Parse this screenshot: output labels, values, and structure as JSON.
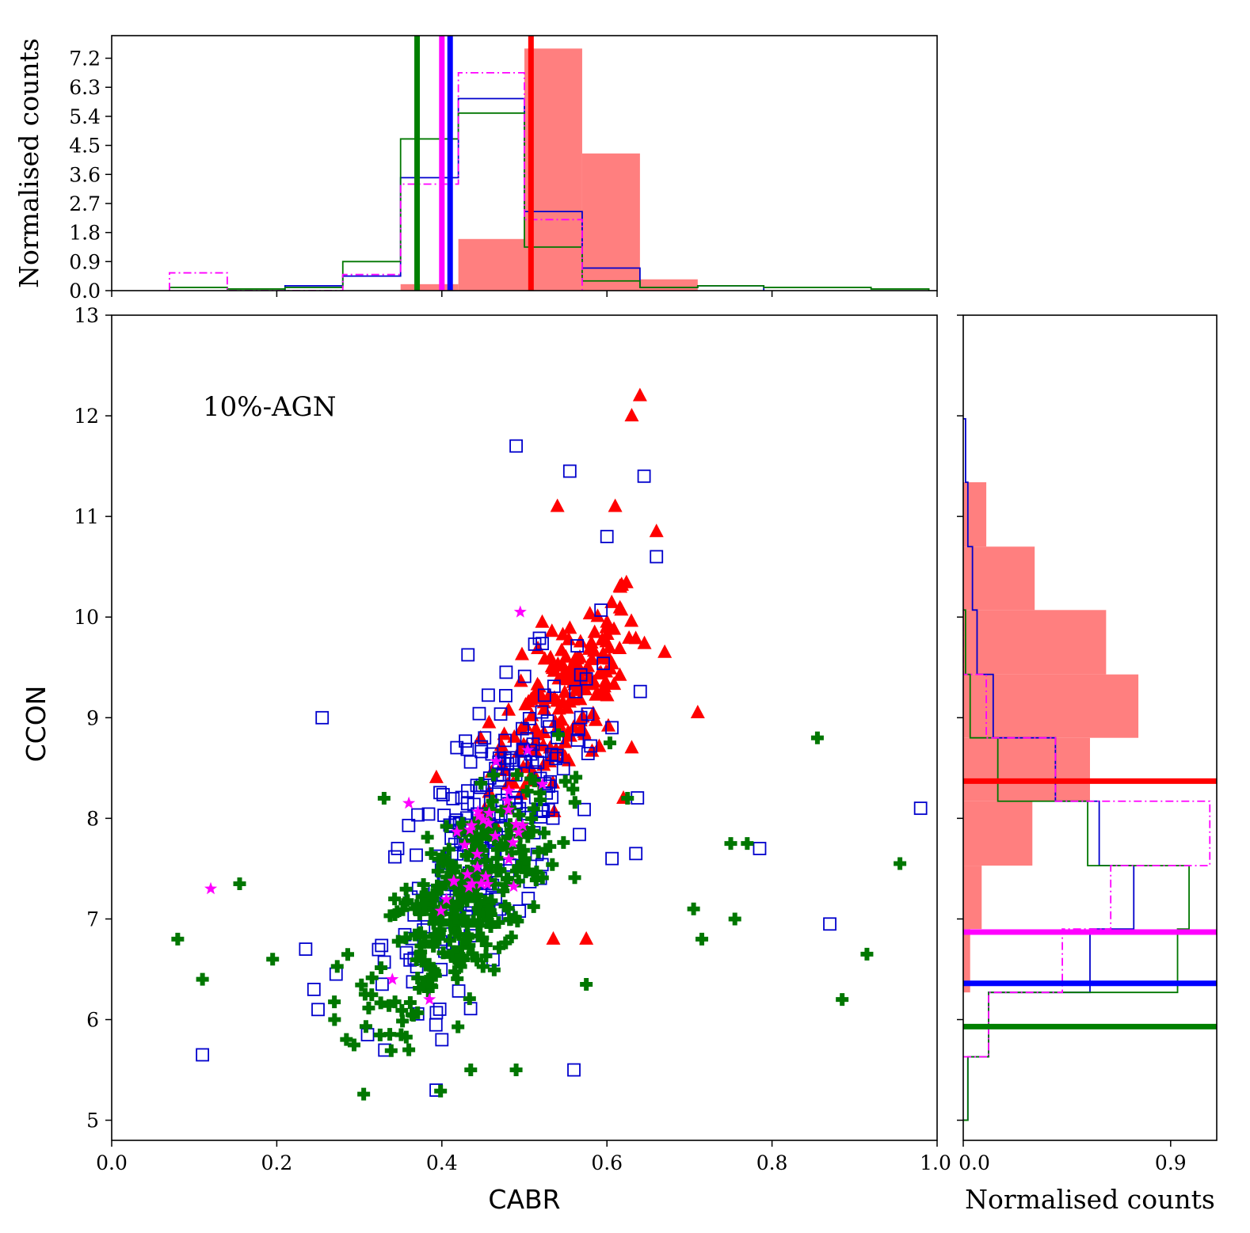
{
  "chart_data": {
    "type": "scatter",
    "annotation": "10%-AGN",
    "main": {
      "xlabel": "CABR",
      "ylabel": "CCON",
      "xlim": [
        0.0,
        1.0
      ],
      "ylim": [
        4.8,
        13.0
      ],
      "xticks": [
        0.0,
        0.2,
        0.4,
        0.6,
        0.8,
        1.0
      ],
      "xtick_labels": [
        "0.0",
        "0.2",
        "0.4",
        "0.6",
        "0.8",
        "1.0"
      ],
      "yticks": [
        5,
        6,
        7,
        8,
        9,
        10,
        11,
        12,
        13
      ],
      "ytick_labels": [
        "5",
        "6",
        "7",
        "8",
        "9",
        "10",
        "11",
        "12",
        "13"
      ]
    },
    "series": [
      {
        "name": "red",
        "marker": "triangle",
        "color": "#ff0000",
        "cx": 0.55,
        "cy": 9.2,
        "sx": 0.045,
        "sy": 0.65,
        "n": 180,
        "points": [
          [
            0.64,
            12.2
          ],
          [
            0.63,
            12.0
          ],
          [
            0.61,
            11.1
          ],
          [
            0.54,
            11.1
          ],
          [
            0.66,
            10.85
          ],
          [
            0.71,
            9.05
          ],
          [
            0.67,
            9.65
          ],
          [
            0.575,
            6.8
          ],
          [
            0.535,
            6.8
          ],
          [
            0.63,
            8.7
          ],
          [
            0.62,
            8.2
          ]
        ]
      },
      {
        "name": "blue",
        "marker": "square-open",
        "color": "#0000cc",
        "cx": 0.46,
        "cy": 7.9,
        "sx": 0.065,
        "sy": 1.0,
        "n": 230,
        "points": [
          [
            0.49,
            11.7
          ],
          [
            0.555,
            11.45
          ],
          [
            0.645,
            11.4
          ],
          [
            0.255,
            9.0
          ],
          [
            0.11,
            5.65
          ],
          [
            0.56,
            5.5
          ],
          [
            0.87,
            6.95
          ],
          [
            0.98,
            8.1
          ],
          [
            0.785,
            7.7
          ],
          [
            0.635,
            7.65
          ],
          [
            0.235,
            6.7
          ],
          [
            0.245,
            6.3
          ],
          [
            0.25,
            6.1
          ],
          [
            0.31,
            5.85
          ],
          [
            0.4,
            5.8
          ],
          [
            0.66,
            10.6
          ],
          [
            0.6,
            10.8
          ]
        ]
      },
      {
        "name": "green",
        "marker": "plus-filled",
        "color": "#007700",
        "cx": 0.43,
        "cy": 7.2,
        "sx": 0.055,
        "sy": 0.7,
        "n": 320,
        "points": [
          [
            0.08,
            6.8
          ],
          [
            0.11,
            6.4
          ],
          [
            0.155,
            7.35
          ],
          [
            0.195,
            6.6
          ],
          [
            0.27,
            6.0
          ],
          [
            0.36,
            5.7
          ],
          [
            0.435,
            5.5
          ],
          [
            0.49,
            5.5
          ],
          [
            0.855,
            8.8
          ],
          [
            0.75,
            7.75
          ],
          [
            0.77,
            7.75
          ],
          [
            0.705,
            7.1
          ],
          [
            0.715,
            6.8
          ],
          [
            0.755,
            7.0
          ],
          [
            0.885,
            6.2
          ],
          [
            0.915,
            6.65
          ],
          [
            0.955,
            7.55
          ],
          [
            0.625,
            8.2
          ],
          [
            0.575,
            6.35
          ],
          [
            0.33,
            8.2
          ]
        ]
      },
      {
        "name": "magenta",
        "marker": "star",
        "color": "#ff00ff",
        "cx": 0.44,
        "cy": 7.6,
        "sx": 0.04,
        "sy": 0.55,
        "n": 34,
        "points": [
          [
            0.12,
            7.3
          ],
          [
            0.495,
            10.05
          ],
          [
            0.36,
            8.15
          ],
          [
            0.385,
            6.2
          ],
          [
            0.34,
            6.4
          ]
        ]
      }
    ],
    "top_hist": {
      "ylabel": "Normalised counts",
      "ylim": [
        0.0,
        7.9
      ],
      "yticks": [
        0.0,
        0.9,
        1.8,
        2.7,
        3.6,
        4.5,
        5.4,
        6.3,
        7.2
      ],
      "ytick_labels": [
        "0.0",
        "0.9",
        "1.8",
        "2.7",
        "3.6",
        "4.5",
        "5.4",
        "6.3",
        "7.2"
      ],
      "red_filled": {
        "edges": [
          0.35,
          0.42,
          0.5,
          0.57,
          0.64,
          0.71
        ],
        "heights": [
          0.2,
          1.6,
          7.5,
          4.25,
          0.35
        ]
      },
      "blue_step": {
        "edges": [
          0.21,
          0.28,
          0.35,
          0.42,
          0.5,
          0.57,
          0.64,
          0.71,
          0.79
        ],
        "heights": [
          0.15,
          0.45,
          3.5,
          5.95,
          2.45,
          0.7,
          0.1,
          0.15
        ]
      },
      "green_step": {
        "edges": [
          0.07,
          0.14,
          0.21,
          0.28,
          0.35,
          0.42,
          0.5,
          0.57,
          0.64,
          0.71,
          0.79,
          0.92,
          0.99
        ],
        "heights": [
          0.1,
          0.05,
          0.1,
          0.9,
          4.7,
          5.5,
          1.35,
          0.3,
          0.1,
          0.15,
          0.1,
          0.05
        ]
      },
      "magenta_step": {
        "edges": [
          0.07,
          0.14,
          0.28,
          0.35,
          0.42,
          0.5,
          0.57
        ],
        "heights": [
          0.55,
          0.0,
          0.5,
          3.3,
          6.75,
          2.2
        ]
      },
      "medians": [
        {
          "color": "#008000",
          "value": 0.37
        },
        {
          "color": "#ff00ff",
          "value": 0.4
        },
        {
          "color": "#0000ff",
          "value": 0.41
        },
        {
          "color": "#ff0000",
          "value": 0.508
        }
      ]
    },
    "right_hist": {
      "xlabel": "Normalised counts",
      "xlim": [
        0.0,
        1.1
      ],
      "xticks": [
        0.0,
        0.9
      ],
      "xtick_labels": [
        "0.0",
        "0.9"
      ],
      "red_filled": {
        "edges": [
          6.27,
          6.9,
          7.53,
          8.17,
          8.8,
          9.43,
          10.07,
          10.7,
          11.34
        ],
        "heights": [
          0.03,
          0.08,
          0.3,
          0.55,
          0.76,
          0.62,
          0.31,
          0.1
        ]
      },
      "blue_step": {
        "edges": [
          5.0,
          5.63,
          6.27,
          6.9,
          7.53,
          8.17,
          8.8,
          9.43,
          10.07,
          10.7,
          11.34,
          11.97
        ],
        "heights": [
          0.02,
          0.11,
          0.55,
          0.74,
          0.59,
          0.4,
          0.13,
          0.06,
          0.04,
          0.02,
          0.01
        ]
      },
      "green_step": {
        "edges": [
          5.0,
          5.63,
          6.27,
          6.9,
          7.53,
          8.17,
          8.8,
          9.43,
          10.07
        ],
        "heights": [
          0.02,
          0.11,
          0.93,
          0.98,
          0.54,
          0.15,
          0.03,
          0.01
        ]
      },
      "magenta_step": {
        "edges": [
          5.63,
          6.27,
          6.9,
          7.53,
          8.17,
          8.8,
          9.43,
          10.07
        ],
        "heights": [
          0.11,
          0.43,
          0.64,
          1.07,
          0.4,
          0.1,
          0.0
        ]
      },
      "medians": [
        {
          "color": "#ff0000",
          "value": 8.37
        },
        {
          "color": "#ff00ff",
          "value": 6.87
        },
        {
          "color": "#0000ff",
          "value": 6.36
        },
        {
          "color": "#008000",
          "value": 5.93
        }
      ]
    }
  }
}
